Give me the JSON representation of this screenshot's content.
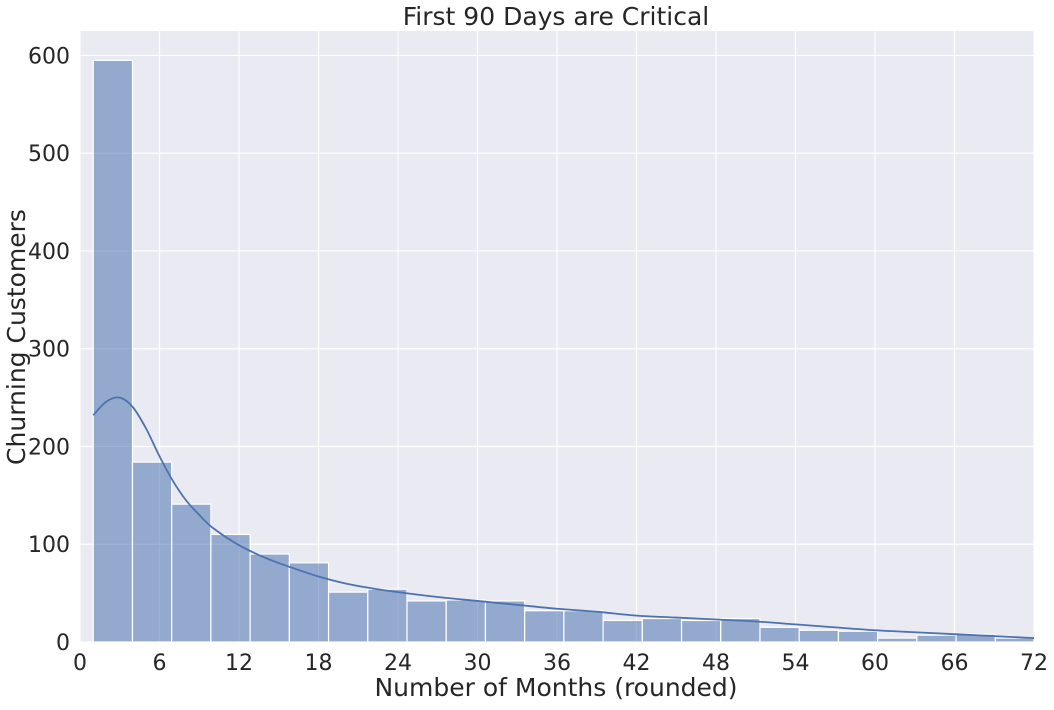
{
  "chart_data": {
    "type": "bar",
    "subtype": "histogram",
    "title": "First 90 Days are Critical",
    "xlabel": "Number of Months (rounded)",
    "ylabel": "Churning Customers",
    "xlim": [
      0,
      72
    ],
    "ylim": [
      0,
      625
    ],
    "xticks": [
      0,
      6,
      12,
      18,
      24,
      30,
      36,
      42,
      48,
      54,
      60,
      66,
      72
    ],
    "yticks": [
      0,
      100,
      200,
      300,
      400,
      500,
      600
    ],
    "grid": true,
    "legend": "none",
    "colors": {
      "background": "#eaeaf2",
      "grid": "#ffffff",
      "bar_fill": "#4c72b0",
      "bar_opacity": 0.55,
      "bar_edge": "#ffffff",
      "kde_line": "#4c72b0"
    },
    "bins": [
      {
        "x0": 1.0,
        "x1": 3.96,
        "value": 595
      },
      {
        "x0": 3.96,
        "x1": 6.92,
        "value": 184
      },
      {
        "x0": 6.92,
        "x1": 9.88,
        "value": 141
      },
      {
        "x0": 9.88,
        "x1": 12.84,
        "value": 110
      },
      {
        "x0": 12.84,
        "x1": 15.8,
        "value": 90
      },
      {
        "x0": 15.8,
        "x1": 18.76,
        "value": 81
      },
      {
        "x0": 18.76,
        "x1": 21.72,
        "value": 51
      },
      {
        "x0": 21.72,
        "x1": 24.68,
        "value": 54
      },
      {
        "x0": 24.68,
        "x1": 27.64,
        "value": 42
      },
      {
        "x0": 27.64,
        "x1": 30.6,
        "value": 43
      },
      {
        "x0": 30.6,
        "x1": 33.56,
        "value": 42
      },
      {
        "x0": 33.56,
        "x1": 36.52,
        "value": 32
      },
      {
        "x0": 36.52,
        "x1": 39.48,
        "value": 32
      },
      {
        "x0": 39.48,
        "x1": 42.44,
        "value": 22
      },
      {
        "x0": 42.44,
        "x1": 45.4,
        "value": 24
      },
      {
        "x0": 45.4,
        "x1": 48.36,
        "value": 22
      },
      {
        "x0": 48.36,
        "x1": 51.32,
        "value": 24
      },
      {
        "x0": 51.32,
        "x1": 54.28,
        "value": 15
      },
      {
        "x0": 54.28,
        "x1": 57.24,
        "value": 12
      },
      {
        "x0": 57.24,
        "x1": 60.2,
        "value": 11
      },
      {
        "x0": 60.2,
        "x1": 63.16,
        "value": 4
      },
      {
        "x0": 63.16,
        "x1": 66.12,
        "value": 7
      },
      {
        "x0": 66.12,
        "x1": 69.08,
        "value": 8
      },
      {
        "x0": 69.08,
        "x1": 72.0,
        "value": 4
      }
    ],
    "kde": {
      "x": [
        1,
        2,
        3,
        4,
        5,
        6,
        7,
        8,
        9,
        10,
        12,
        14,
        16,
        18,
        20,
        22,
        24,
        27,
        30,
        33,
        36,
        39,
        42,
        45,
        48,
        51,
        54,
        57,
        60,
        63,
        66,
        69,
        72
      ],
      "y": [
        232,
        246,
        250,
        240,
        218,
        190,
        165,
        145,
        130,
        117,
        99,
        86,
        76,
        67,
        60,
        55,
        51,
        46,
        42,
        38,
        34,
        31,
        27,
        25,
        23,
        21,
        18,
        15,
        12,
        10,
        8,
        6,
        4
      ]
    }
  }
}
